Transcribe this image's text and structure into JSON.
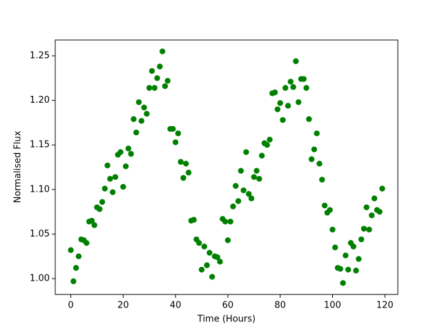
{
  "chart_data": {
    "type": "scatter",
    "x_label": "Time (Hours)",
    "y_label": "Normalised Flux",
    "x": [
      0,
      1,
      2,
      3,
      4,
      5,
      6,
      7,
      8,
      9,
      10,
      11,
      12,
      13,
      14,
      15,
      16,
      17,
      18,
      19,
      20,
      21,
      22,
      23,
      24,
      25,
      26,
      27,
      28,
      29,
      30,
      31,
      32,
      33,
      34,
      35,
      36,
      37,
      38,
      39,
      40,
      41,
      42,
      43,
      44,
      45,
      46,
      47,
      48,
      49,
      50,
      51,
      52,
      53,
      54,
      55,
      56,
      57,
      58,
      59,
      60,
      61,
      62,
      63,
      64,
      65,
      66,
      67,
      68,
      69,
      70,
      71,
      72,
      73,
      74,
      75,
      76,
      77,
      78,
      79,
      80,
      81,
      82,
      83,
      84,
      85,
      86,
      87,
      88,
      89,
      90,
      91,
      92,
      93,
      94,
      95,
      96,
      97,
      98,
      99,
      100,
      101,
      102,
      103,
      104,
      105,
      106,
      107,
      108,
      109,
      110,
      111,
      112,
      113,
      114,
      115,
      116,
      117,
      118,
      119
    ],
    "values": [
      1.032,
      0.997,
      1.012,
      1.025,
      1.044,
      1.043,
      1.04,
      1.064,
      1.065,
      1.06,
      1.08,
      1.078,
      1.086,
      1.101,
      1.127,
      1.112,
      1.097,
      1.114,
      1.139,
      1.142,
      1.103,
      1.126,
      1.146,
      1.14,
      1.179,
      1.164,
      1.198,
      1.177,
      1.192,
      1.185,
      1.214,
      1.233,
      1.214,
      1.225,
      1.238,
      1.255,
      1.216,
      1.222,
      1.168,
      1.168,
      1.153,
      1.163,
      1.131,
      1.113,
      1.129,
      1.119,
      1.065,
      1.066,
      1.044,
      1.04,
      1.01,
      1.036,
      1.015,
      1.029,
      1.002,
      1.025,
      1.024,
      1.019,
      1.067,
      1.064,
      1.043,
      1.064,
      1.081,
      1.104,
      1.087,
      1.121,
      1.099,
      1.142,
      1.095,
      1.09,
      1.114,
      1.121,
      1.112,
      1.138,
      1.152,
      1.15,
      1.156,
      1.208,
      1.209,
      1.19,
      1.197,
      1.178,
      1.214,
      1.194,
      1.221,
      1.215,
      1.244,
      1.198,
      1.224,
      1.224,
      1.214,
      1.179,
      1.134,
      1.145,
      1.163,
      1.129,
      1.111,
      1.082,
      1.074,
      1.077,
      1.055,
      1.035,
      1.012,
      1.011,
      0.995,
      1.026,
      1.01,
      1.04,
      1.036,
      1.009,
      1.022,
      1.044,
      1.056,
      1.08,
      1.055,
      1.071,
      1.09,
      1.077,
      1.075,
      1.101
    ],
    "color": "#008000",
    "xlim": [
      -5.95,
      124.95
    ],
    "xticks": [
      0,
      20,
      40,
      60,
      80,
      100,
      120
    ],
    "ylim": [
      0.9822,
      1.2678
    ],
    "yticks": [
      {
        "value": 1.0,
        "label": "1.00"
      },
      1.05,
      {
        "value": 1.1,
        "label": "1.10"
      },
      1.15,
      {
        "value": 1.2,
        "label": "1.20"
      },
      1.25
    ],
    "grid": false
  }
}
